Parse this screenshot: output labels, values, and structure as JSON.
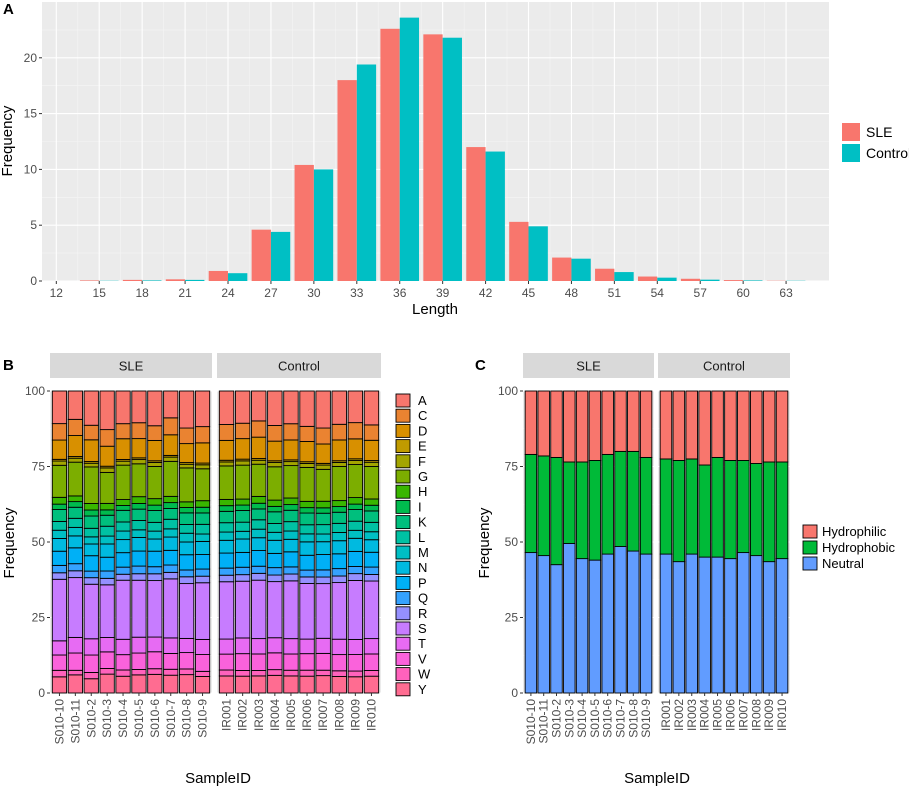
{
  "chart_data": [
    {
      "panel": "A",
      "type": "bar",
      "xlabel": "Length",
      "ylabel": "Frequency",
      "xlim": [
        11,
        66
      ],
      "ylim": [
        0,
        25
      ],
      "x_ticks": [
        12,
        15,
        18,
        21,
        24,
        27,
        30,
        33,
        36,
        39,
        42,
        45,
        48,
        51,
        54,
        57,
        60,
        63
      ],
      "y_ticks": [
        0,
        5,
        10,
        15,
        20
      ],
      "legend": [
        "SLE",
        "Control"
      ],
      "colors": {
        "SLE": "#F8766D",
        "Control": "#00BFC4"
      },
      "categories": [
        12,
        15,
        18,
        21,
        24,
        27,
        30,
        33,
        36,
        39,
        42,
        45,
        48,
        51,
        54,
        57,
        60,
        63
      ],
      "series": [
        {
          "name": "SLE",
          "values": [
            0.0,
            0.05,
            0.1,
            0.15,
            0.9,
            4.6,
            10.4,
            18.0,
            22.6,
            22.1,
            12.0,
            5.3,
            2.1,
            1.1,
            0.4,
            0.2,
            0.08,
            0.02
          ]
        },
        {
          "name": "Control",
          "values": [
            0.0,
            0.02,
            0.05,
            0.1,
            0.7,
            4.4,
            10.0,
            19.4,
            23.6,
            21.8,
            11.6,
            4.9,
            2.0,
            0.8,
            0.3,
            0.12,
            0.05,
            0.02
          ]
        }
      ]
    },
    {
      "panel": "B",
      "type": "stacked-bar",
      "xlabel": "SampleID",
      "ylabel": "Frequency",
      "ylim": [
        0,
        100
      ],
      "y_ticks": [
        0,
        25,
        50,
        75,
        100
      ],
      "facets": [
        "SLE",
        "Control"
      ],
      "samples": {
        "SLE": [
          "S010-10",
          "S010-11",
          "S010-2",
          "S010-3",
          "S010-4",
          "S010-5",
          "S010-6",
          "S010-7",
          "S010-8",
          "S010-9"
        ],
        "Control": [
          "IR001",
          "IR002",
          "IR003",
          "IR004",
          "IR005",
          "IR006",
          "IR007",
          "IR008",
          "IR009",
          "IR010"
        ]
      },
      "legend": [
        "A",
        "C",
        "D",
        "E",
        "F",
        "G",
        "H",
        "I",
        "K",
        "L",
        "M",
        "N",
        "P",
        "Q",
        "R",
        "S",
        "T",
        "V",
        "W",
        "Y"
      ],
      "colors": [
        "#F8766D",
        "#EA8331",
        "#D89000",
        "#C09B00",
        "#A3A500",
        "#7CAE00",
        "#39B600",
        "#00BB4E",
        "#00BF7D",
        "#00C1A3",
        "#00BFC4",
        "#00BAE0",
        "#00B0F6",
        "#35A2FF",
        "#9590FF",
        "#C77CFF",
        "#E76BF3",
        "#FA62DB",
        "#FF62BC",
        "#FF6C91"
      ],
      "base_composition_percent": [
        11.5,
        5.5,
        7.0,
        0.6,
        1.4,
        11.6,
        2.2,
        1.9,
        4.0,
        3.2,
        2.8,
        4.5,
        5.2,
        2.5,
        2.3,
        20.5,
        5.3,
        5.8,
        2.0,
        6.2
      ],
      "sample_offsets": [
        [
          0.0,
          0.3,
          -0.2,
          0.0,
          0.1,
          -0.3,
          0.2,
          0.0,
          0.2,
          -0.1,
          0.1,
          0.0,
          -0.2,
          0.1,
          0.0,
          1.2,
          -0.3,
          -0.4,
          0.3,
          -0.5
        ],
        [
          -1.5,
          0.2,
          0.4,
          0.0,
          0.0,
          0.3,
          -0.2,
          0.1,
          -0.1,
          0.0,
          0.2,
          -0.3,
          0.4,
          0.0,
          0.1,
          0.6,
          0.2,
          0.3,
          -0.4,
          0.2
        ],
        [
          0.5,
          -0.4,
          0.6,
          0.0,
          -0.1,
          1.2,
          0.1,
          0.2,
          0.3,
          -0.2,
          -0.3,
          -0.4,
          0.2,
          -0.2,
          0.0,
          -1.4,
          0.4,
          0.3,
          0.2,
          -1.2
        ],
        [
          2.2,
          0.4,
          0.1,
          0.0,
          0.2,
          -0.6,
          0.1,
          0.0,
          -0.1,
          0.3,
          0.0,
          0.2,
          -0.3,
          0.1,
          0.0,
          -1.8,
          -0.2,
          0.1,
          0.0,
          0.5
        ],
        [
          0.0,
          -0.2,
          0.3,
          0.0,
          0.0,
          0.5,
          -0.1,
          -0.2,
          0.1,
          0.0,
          0.2,
          0.1,
          -0.1,
          0.0,
          -0.2,
          0.3,
          0.1,
          -0.4,
          0.2,
          -0.3
        ],
        [
          -0.3,
          0.1,
          -0.2,
          0.0,
          0.1,
          0.0,
          0.2,
          0.1,
          0.0,
          0.1,
          -0.1,
          0.3,
          0.1,
          0.2,
          0.0,
          -0.4,
          0.3,
          0.0,
          -0.1,
          0.2
        ],
        [
          0.8,
          -0.3,
          0.2,
          0.0,
          0.0,
          -0.2,
          0.1,
          0.0,
          0.2,
          -0.1,
          0.0,
          -0.2,
          0.3,
          0.0,
          0.1,
          -0.5,
          -0.1,
          0.2,
          0.0,
          0.4
        ],
        [
          -2.0,
          0.5,
          0.3,
          0.0,
          0.1,
          0.8,
          0.0,
          0.2,
          -0.2,
          0.2,
          0.1,
          0.2,
          0.0,
          0.1,
          0.0,
          0.4,
          0.2,
          -0.2,
          0.1,
          0.1
        ],
        [
          1.6,
          0.0,
          -0.3,
          0.0,
          -0.1,
          0.4,
          -0.2,
          0.0,
          0.1,
          -0.1,
          0.3,
          0.0,
          0.2,
          -0.1,
          0.1,
          -1.1,
          -0.3,
          0.0,
          0.0,
          0.3
        ],
        [
          1.0,
          0.2,
          0.1,
          0.0,
          0.0,
          -0.4,
          0.1,
          0.1,
          0.0,
          0.2,
          -0.2,
          0.1,
          -0.1,
          0.0,
          0.0,
          -0.6,
          0.0,
          0.1,
          -0.2,
          -0.4
        ],
        [
          0.3,
          0.1,
          0.0,
          0.0,
          0.0,
          0.2,
          0.0,
          0.1,
          0.0,
          0.1,
          0.1,
          0.0,
          0.1,
          0.0,
          0.0,
          -0.3,
          0.0,
          -0.2,
          0.1,
          -0.2
        ],
        [
          -0.2,
          -0.1,
          0.2,
          0.0,
          0.1,
          0.3,
          -0.1,
          0.0,
          0.1,
          0.0,
          -0.1,
          0.2,
          0.0,
          0.1,
          0.0,
          -0.6,
          0.2,
          0.1,
          0.0,
          -0.3
        ],
        [
          -1.0,
          0.2,
          0.5,
          0.0,
          0.0,
          -0.3,
          0.2,
          0.1,
          -0.2,
          0.1,
          0.2,
          0.0,
          0.3,
          0.0,
          0.1,
          0.0,
          0.1,
          0.0,
          -0.1,
          -0.2
        ],
        [
          0.6,
          0.0,
          -0.1,
          0.0,
          0.1,
          0.1,
          0.0,
          0.0,
          0.1,
          -0.1,
          0.0,
          0.1,
          -0.2,
          0.1,
          0.0,
          -0.8,
          0.0,
          0.1,
          0.0,
          0.0
        ],
        [
          0.0,
          0.2,
          0.0,
          0.0,
          0.0,
          -0.2,
          0.1,
          0.1,
          0.0,
          0.1,
          0.1,
          -0.1,
          0.1,
          0.0,
          0.1,
          -0.2,
          0.1,
          -0.1,
          0.0,
          -0.2
        ],
        [
          0.9,
          -0.2,
          0.1,
          0.0,
          0.0,
          0.3,
          0.0,
          0.0,
          0.1,
          0.0,
          0.0,
          0.2,
          0.0,
          -0.1,
          0.0,
          -1.0,
          -0.2,
          0.0,
          0.1,
          -0.3
        ],
        [
          1.5,
          0.1,
          -0.2,
          0.0,
          0.1,
          -0.4,
          0.1,
          0.0,
          0.0,
          0.1,
          -0.1,
          0.0,
          0.2,
          0.0,
          0.0,
          -1.3,
          0.0,
          0.1,
          -0.1,
          -0.1
        ],
        [
          0.2,
          0.0,
          0.3,
          0.0,
          0.0,
          0.4,
          -0.1,
          0.1,
          -0.1,
          0.0,
          0.1,
          0.1,
          0.0,
          0.1,
          0.0,
          -0.6,
          0.1,
          -0.1,
          0.0,
          -0.4
        ],
        [
          -0.4,
          0.2,
          0.0,
          0.0,
          0.0,
          0.0,
          0.1,
          0.0,
          0.1,
          0.0,
          0.0,
          0.1,
          0.1,
          0.0,
          0.1,
          0.2,
          0.0,
          0.0,
          0.0,
          -0.5
        ],
        [
          0.4,
          -0.1,
          0.1,
          0.0,
          0.1,
          -0.2,
          0.0,
          0.1,
          0.0,
          0.1,
          0.0,
          -0.1,
          0.0,
          0.1,
          0.0,
          -0.3,
          0.1,
          0.0,
          0.0,
          -0.3
        ]
      ]
    },
    {
      "panel": "C",
      "type": "stacked-bar",
      "xlabel": "SampleID",
      "ylabel": "Frequency",
      "ylim": [
        0,
        100
      ],
      "y_ticks": [
        0,
        25,
        50,
        75,
        100
      ],
      "facets": [
        "SLE",
        "Control"
      ],
      "samples": {
        "SLE": [
          "S010-10",
          "S010-11",
          "S010-2",
          "S010-3",
          "S010-4",
          "S010-5",
          "S010-6",
          "S010-7",
          "S010-8",
          "S010-9"
        ],
        "Control": [
          "IR001",
          "IR002",
          "IR003",
          "IR004",
          "IR005",
          "IR006",
          "IR007",
          "IR008",
          "IR009",
          "IR010"
        ]
      },
      "legend": [
        "Hydrophilic",
        "Hydrophobic",
        "Neutral"
      ],
      "colors": {
        "Hydrophilic": "#F8766D",
        "Hydrophobic": "#00BA38",
        "Neutral": "#619CFF"
      },
      "series": [
        {
          "name": "Neutral",
          "values": [
            46.5,
            45.5,
            42.5,
            49.5,
            44.5,
            44.0,
            46.0,
            48.5,
            47.0,
            46.0,
            46.0,
            43.5,
            46.0,
            45.0,
            45.0,
            44.5,
            46.5,
            45.5,
            43.5,
            44.5
          ]
        },
        {
          "name": "Hydrophobic",
          "values": [
            32.5,
            33.0,
            35.5,
            27.0,
            32.0,
            33.0,
            33.0,
            31.5,
            33.0,
            32.0,
            31.5,
            33.5,
            31.5,
            30.5,
            33.0,
            32.5,
            30.5,
            30.5,
            33.0,
            32.0
          ]
        },
        {
          "name": "Hydrophilic",
          "values": [
            21.0,
            21.5,
            22.0,
            23.5,
            23.5,
            23.0,
            21.0,
            20.0,
            20.0,
            22.0,
            22.5,
            23.0,
            22.5,
            24.5,
            22.0,
            23.0,
            23.0,
            24.0,
            23.5,
            23.5
          ]
        }
      ]
    }
  ],
  "panel_labels": {
    "A": "A",
    "B": "B",
    "C": "C"
  }
}
